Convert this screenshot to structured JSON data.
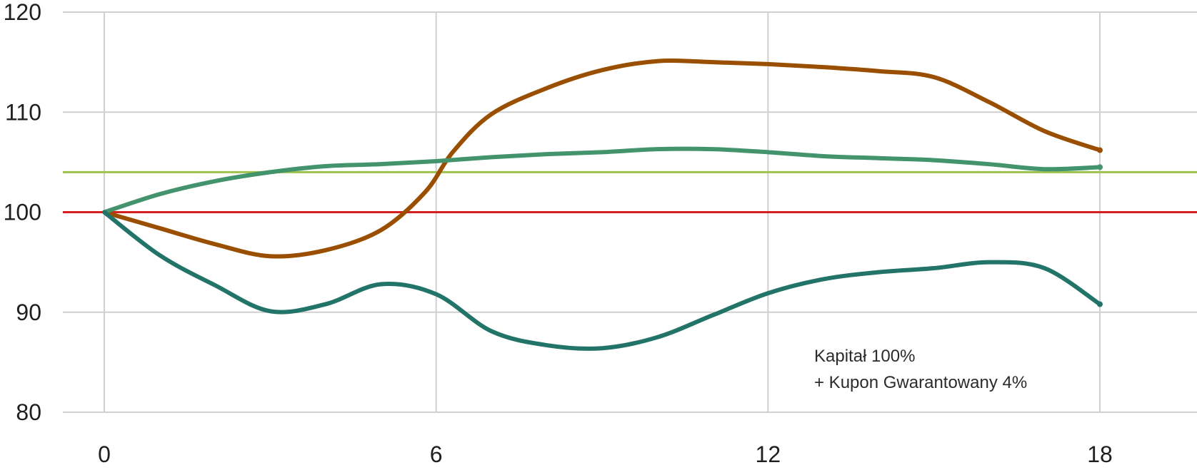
{
  "chart_data": {
    "type": "line",
    "title": "",
    "xlabel": "",
    "ylabel": "",
    "xlim": [
      0,
      18
    ],
    "ylim": [
      80,
      120
    ],
    "x_ticks": [
      0,
      6,
      12,
      18
    ],
    "y_ticks": [
      80,
      90,
      100,
      110,
      120
    ],
    "grid": true,
    "colors": {
      "grid": "#cfcfcf",
      "tick_text": "#1f1f1f",
      "annotation_text": "#2b2b2b",
      "reference_100": "#d61f1f",
      "reference_104": "#9ec24d",
      "series_orange": "#9a4f00",
      "series_green": "#43946d",
      "series_teal": "#237468"
    },
    "reference_lines": [
      {
        "value": 100,
        "color": "#d61f1f"
      },
      {
        "value": 104,
        "color": "#9ec24d"
      }
    ],
    "series": [
      {
        "color": "#9a4f00",
        "points": [
          [
            0,
            100
          ],
          [
            1,
            98.4
          ],
          [
            2,
            96.8
          ],
          [
            3,
            95.6
          ],
          [
            4,
            96.2
          ],
          [
            5,
            98.2
          ],
          [
            5.8,
            102
          ],
          [
            6.3,
            106
          ],
          [
            7,
            109.8
          ],
          [
            8,
            112.4
          ],
          [
            9,
            114.2
          ],
          [
            10,
            115.1
          ],
          [
            11,
            115
          ],
          [
            12,
            114.8
          ],
          [
            13,
            114.5
          ],
          [
            14,
            114.1
          ],
          [
            15,
            113.5
          ],
          [
            16,
            111
          ],
          [
            17,
            108.1
          ],
          [
            18,
            106.2
          ]
        ]
      },
      {
        "color": "#43946d",
        "points": [
          [
            0,
            100
          ],
          [
            1,
            101.8
          ],
          [
            2,
            103.1
          ],
          [
            3,
            104
          ],
          [
            4,
            104.6
          ],
          [
            5,
            104.8
          ],
          [
            6,
            105.1
          ],
          [
            7,
            105.5
          ],
          [
            8,
            105.8
          ],
          [
            9,
            106
          ],
          [
            10,
            106.3
          ],
          [
            11,
            106.3
          ],
          [
            12,
            106
          ],
          [
            13,
            105.6
          ],
          [
            14,
            105.4
          ],
          [
            15,
            105.2
          ],
          [
            16,
            104.8
          ],
          [
            17,
            104.3
          ],
          [
            18,
            104.5
          ]
        ]
      },
      {
        "color": "#237468",
        "points": [
          [
            0,
            100
          ],
          [
            1,
            95.7
          ],
          [
            2,
            92.7
          ],
          [
            3,
            90.1
          ],
          [
            4,
            90.8
          ],
          [
            5,
            92.8
          ],
          [
            6,
            91.8
          ],
          [
            7,
            88.1
          ],
          [
            8,
            86.7
          ],
          [
            9,
            86.4
          ],
          [
            10,
            87.5
          ],
          [
            11,
            89.7
          ],
          [
            12,
            91.9
          ],
          [
            13,
            93.3
          ],
          [
            14,
            94
          ],
          [
            15,
            94.4
          ],
          [
            16,
            95
          ],
          [
            17,
            94.4
          ],
          [
            18,
            90.8
          ]
        ]
      }
    ],
    "annotations": [
      {
        "text_lines": [
          "Kapitał 100%",
          "+ Kupon Gwarantowany 4%"
        ]
      }
    ]
  }
}
